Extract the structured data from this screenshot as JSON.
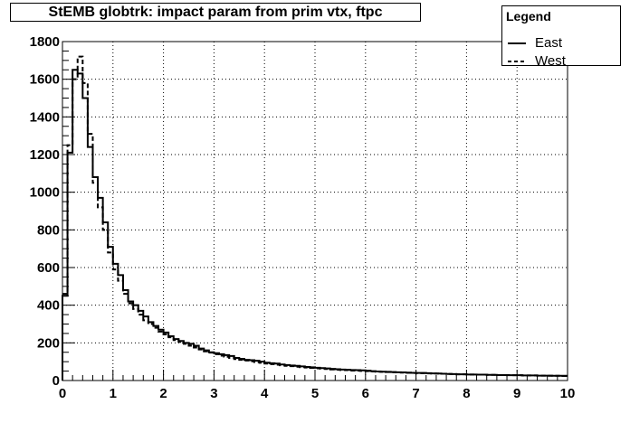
{
  "chart_data": {
    "type": "line",
    "title": "StEMB globtrk: impact param from prim vtx, ftpc",
    "legend": {
      "title": "Legend",
      "placement": "top-right"
    },
    "xlim": [
      0,
      10
    ],
    "ylim": [
      0,
      1800
    ],
    "grid": true,
    "x_ticks": [
      "0",
      "1",
      "2",
      "3",
      "4",
      "5",
      "6",
      "7",
      "8",
      "9",
      "10"
    ],
    "y_ticks": [
      "0",
      "200",
      "400",
      "600",
      "800",
      "1000",
      "1200",
      "1400",
      "1600",
      "1800"
    ],
    "bin_width": 0.1,
    "series": [
      {
        "name": "East",
        "style": "solid",
        "color": "#000000",
        "values": [
          450,
          1210,
          1650,
          1630,
          1500,
          1240,
          1080,
          970,
          840,
          710,
          620,
          560,
          480,
          420,
          400,
          370,
          340,
          310,
          290,
          270,
          255,
          235,
          220,
          210,
          200,
          195,
          185,
          170,
          160,
          150,
          145,
          140,
          135,
          130,
          120,
          115,
          110,
          108,
          105,
          100,
          95,
          92,
          90,
          85,
          82,
          80,
          78,
          75,
          72,
          70,
          68,
          66,
          64,
          62,
          60,
          58,
          57,
          56,
          55,
          54,
          52,
          50,
          48,
          47,
          46,
          45,
          44,
          43,
          42,
          41,
          40,
          40,
          39,
          38,
          37,
          36,
          35,
          34,
          33,
          33,
          32,
          32,
          31,
          31,
          30,
          30,
          29,
          29,
          28,
          28,
          28,
          27,
          27,
          27,
          26,
          26,
          26,
          25,
          25,
          25
        ]
      },
      {
        "name": "West",
        "style": "dashed",
        "color": "#000000",
        "values": [
          460,
          1250,
          1600,
          1720,
          1580,
          1310,
          1050,
          920,
          800,
          680,
          590,
          530,
          460,
          410,
          380,
          350,
          320,
          300,
          280,
          260,
          245,
          230,
          215,
          205,
          195,
          185,
          175,
          165,
          155,
          148,
          140,
          132,
          126,
          120,
          114,
          110,
          106,
          102,
          98,
          94,
          90,
          87,
          84,
          81,
          78,
          76,
          73,
          71,
          69,
          67,
          65,
          63,
          61,
          59,
          57,
          56,
          55,
          53,
          52,
          51,
          50,
          48,
          47,
          46,
          45,
          44,
          43,
          42,
          41,
          40,
          39,
          39,
          38,
          37,
          37,
          36,
          35,
          34,
          33,
          33,
          32,
          32,
          31,
          31,
          30,
          30,
          29,
          29,
          29,
          28,
          28,
          27,
          27,
          27,
          26,
          26,
          25,
          25,
          25,
          24
        ]
      }
    ]
  }
}
